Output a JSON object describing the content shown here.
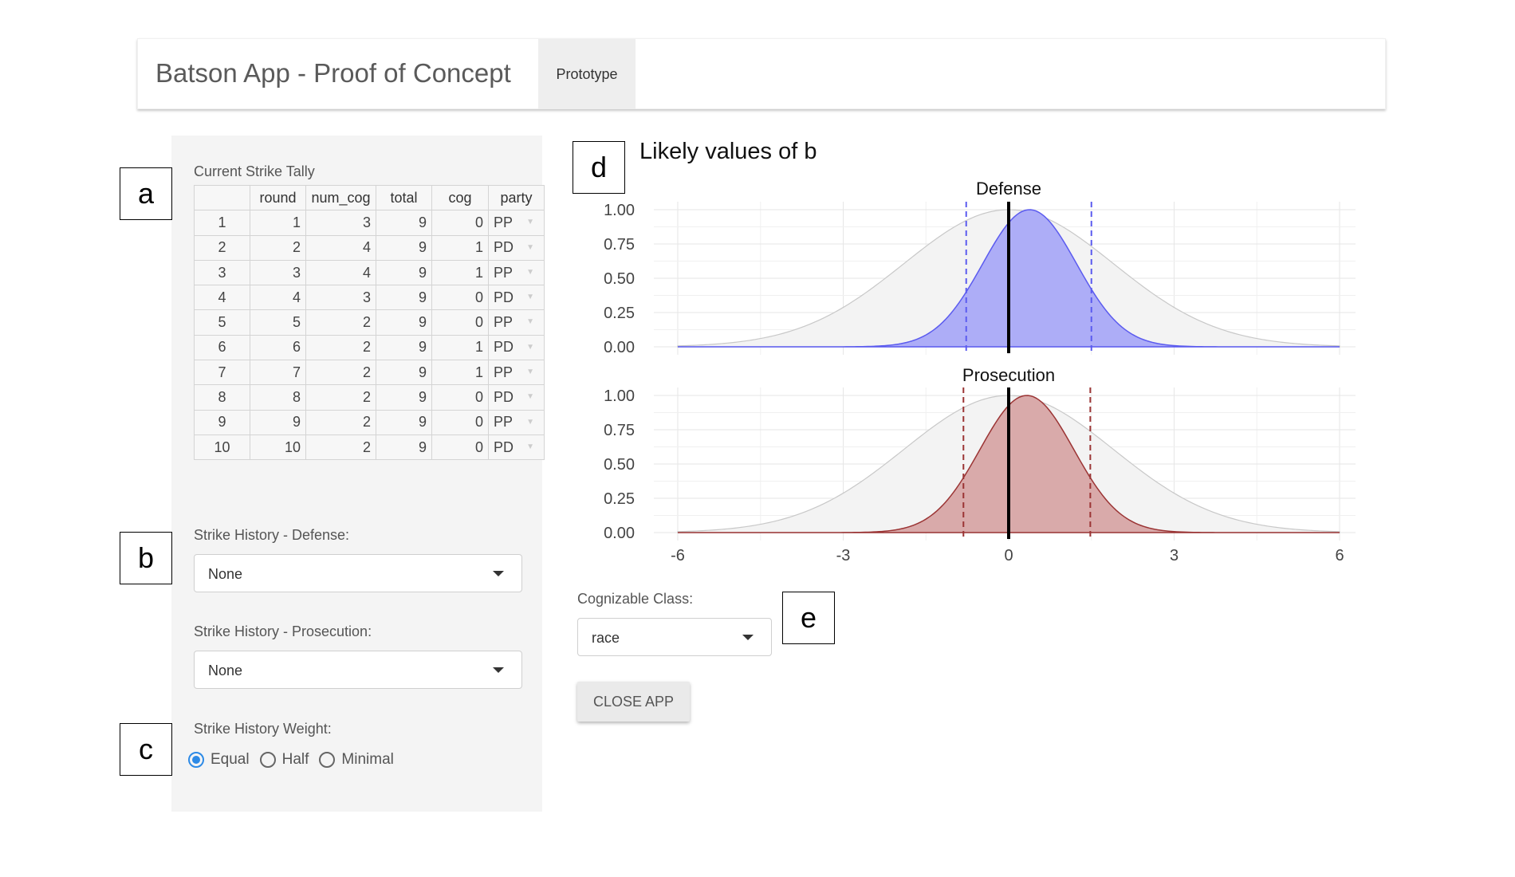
{
  "header": {
    "title": "Batson App - Proof of Concept",
    "tab": "Prototype"
  },
  "tally": {
    "label": "Current Strike Tally",
    "columns": [
      "round",
      "num_cog",
      "total",
      "cog",
      "party"
    ],
    "rows": [
      [
        "1",
        "1",
        "3",
        "9",
        "0",
        "PP"
      ],
      [
        "2",
        "2",
        "4",
        "9",
        "1",
        "PD"
      ],
      [
        "3",
        "3",
        "4",
        "9",
        "1",
        "PP"
      ],
      [
        "4",
        "4",
        "3",
        "9",
        "0",
        "PD"
      ],
      [
        "5",
        "5",
        "2",
        "9",
        "0",
        "PP"
      ],
      [
        "6",
        "6",
        "2",
        "9",
        "1",
        "PD"
      ],
      [
        "7",
        "7",
        "2",
        "9",
        "1",
        "PP"
      ],
      [
        "8",
        "8",
        "2",
        "9",
        "0",
        "PD"
      ],
      [
        "9",
        "9",
        "2",
        "9",
        "0",
        "PP"
      ],
      [
        "10",
        "10",
        "2",
        "9",
        "0",
        "PD"
      ]
    ]
  },
  "history_defense": {
    "label": "Strike History - Defense:",
    "value": "None"
  },
  "history_prosecution": {
    "label": "Strike History - Prosecution:",
    "value": "None"
  },
  "weight": {
    "label": "Strike History Weight:",
    "options": [
      "Equal",
      "Half",
      "Minimal"
    ],
    "selected": "Equal"
  },
  "cog_class": {
    "label": "Cognizable Class:",
    "value": "race"
  },
  "close_button": "CLOSE APP",
  "annotations": [
    "a",
    "b",
    "c",
    "d",
    "e"
  ],
  "chart_data": [
    {
      "type": "area",
      "title": "Likely values of b",
      "subtitle": "Defense",
      "xlim": [
        -6,
        6
      ],
      "ylim": [
        0,
        1
      ],
      "x_ticks": [
        "-6",
        "-3",
        "0",
        "3",
        "6"
      ],
      "y_ticks": [
        "0.00",
        "0.25",
        "0.50",
        "0.75",
        "1.00"
      ],
      "prior": {
        "mean": 0,
        "sd": 1.9
      },
      "posterior": {
        "mean": 0.38,
        "sd": 0.85,
        "color": "#5b5bef",
        "fill": "#adadf7"
      },
      "interval": [
        -0.77,
        1.5
      ],
      "vline": 0
    },
    {
      "type": "area",
      "subtitle": "Prosecution",
      "xlim": [
        -6,
        6
      ],
      "ylim": [
        0,
        1
      ],
      "x_ticks": [
        "-6",
        "-3",
        "0",
        "3",
        "6"
      ],
      "y_ticks": [
        "0.00",
        "0.25",
        "0.50",
        "0.75",
        "1.00"
      ],
      "prior": {
        "mean": 0,
        "sd": 1.9
      },
      "posterior": {
        "mean": 0.33,
        "sd": 0.85,
        "color": "#9b3434",
        "fill": "#d9aaaa"
      },
      "interval": [
        -0.82,
        1.48
      ],
      "vline": 0
    }
  ]
}
